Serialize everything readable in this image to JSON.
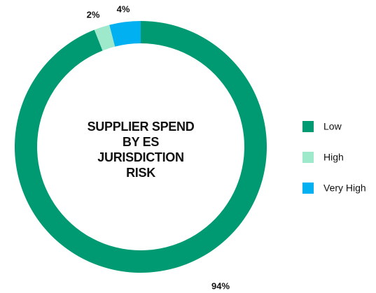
{
  "chart_data": {
    "type": "donut",
    "title": "SUPPLIER SPEND BY ES JURISDICTION RISK",
    "categories": [
      "Low",
      "High",
      "Very High"
    ],
    "values": [
      94,
      2,
      4
    ],
    "value_labels": [
      "94%",
      "2%",
      "4%"
    ],
    "colors": [
      "#009a72",
      "#9ee9cc",
      "#00b0f0"
    ],
    "legend": "right"
  }
}
